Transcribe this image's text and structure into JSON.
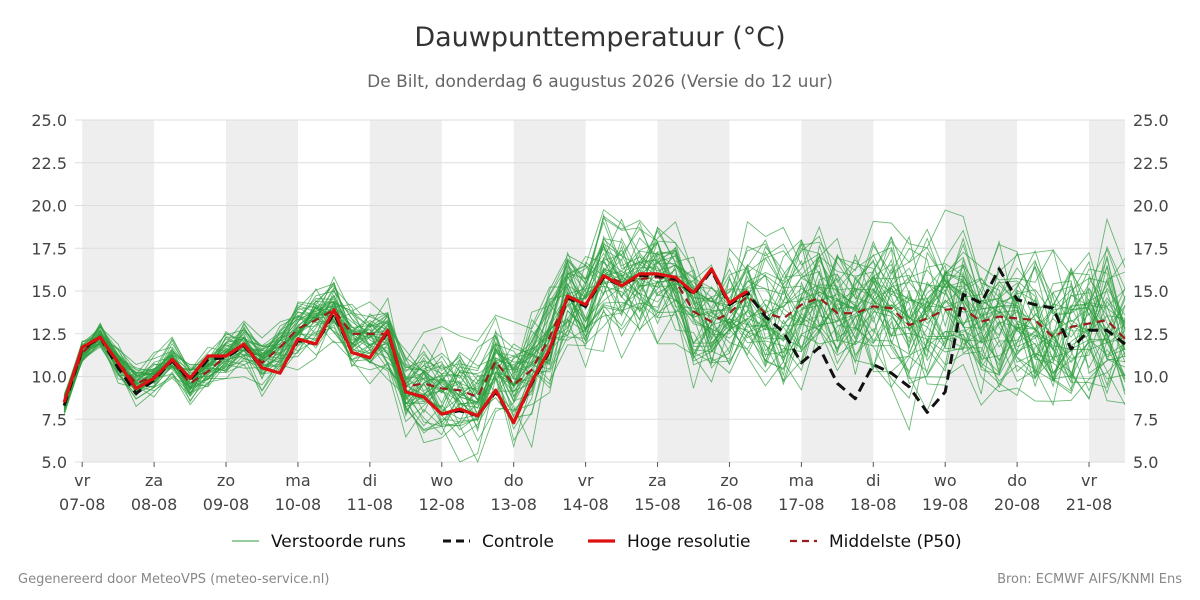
{
  "title": "Dauwpunttemperatuur (°C)",
  "subtitle": "De Bilt, donderdag  6 augustus 2026 (Versie do 12 uur)",
  "footer": {
    "generated": "Gegenereerd door MeteoVPS (meteo-service.nl)",
    "source": "Bron: ECMWF AIFS/KNMI Ens"
  },
  "colors": {
    "ensemble": "#2e9e3e",
    "control": "#111111",
    "high_res": "#dd1111",
    "median": "#9b1c1c",
    "night_band": "#eeeeee",
    "grid": "#dddddd"
  },
  "chart_data": {
    "type": "line",
    "ylim": [
      5,
      25
    ],
    "yticks": [
      "5.0",
      "7.5",
      "10.0",
      "12.5",
      "15.0",
      "17.5",
      "20.0",
      "22.5",
      "25.0"
    ],
    "y_axis_sides": [
      "left",
      "right"
    ],
    "xlim": [
      6.9,
      21.5
    ],
    "x_ticks": [
      {
        "x": 7,
        "day": "vr",
        "date": "07-08"
      },
      {
        "x": 8,
        "day": "za",
        "date": "08-08"
      },
      {
        "x": 9,
        "day": "zo",
        "date": "09-08"
      },
      {
        "x": 10,
        "day": "ma",
        "date": "10-08"
      },
      {
        "x": 11,
        "day": "di",
        "date": "11-08"
      },
      {
        "x": 12,
        "day": "wo",
        "date": "12-08"
      },
      {
        "x": 13,
        "day": "do",
        "date": "13-08"
      },
      {
        "x": 14,
        "day": "vr",
        "date": "14-08"
      },
      {
        "x": 15,
        "day": "za",
        "date": "15-08"
      },
      {
        "x": 16,
        "day": "zo",
        "date": "16-08"
      },
      {
        "x": 17,
        "day": "ma",
        "date": "17-08"
      },
      {
        "x": 18,
        "day": "di",
        "date": "18-08"
      },
      {
        "x": 19,
        "day": "wo",
        "date": "19-08"
      },
      {
        "x": 20,
        "day": "do",
        "date": "20-08"
      },
      {
        "x": 21,
        "day": "vr",
        "date": "21-08"
      }
    ],
    "shaded_days": [
      [
        7,
        8
      ],
      [
        9,
        10
      ],
      [
        11,
        12
      ],
      [
        13,
        14
      ],
      [
        15,
        16
      ],
      [
        17,
        18
      ],
      [
        19,
        20
      ],
      [
        21,
        22
      ]
    ],
    "grid": true,
    "legend_position": "bottom",
    "series": [
      {
        "name": "Hoge resolutie",
        "style": "solid",
        "color": "#dd1111",
        "x": [
          6.75,
          7.0,
          7.25,
          7.5,
          7.75,
          8.0,
          8.25,
          8.5,
          8.75,
          9.0,
          9.25,
          9.5,
          9.75,
          10.0,
          10.25,
          10.5,
          10.75,
          11.0,
          11.25,
          11.5,
          11.75,
          12.0,
          12.25,
          12.5,
          12.75,
          13.0,
          13.25,
          13.5,
          13.75,
          14.0,
          14.25,
          14.5,
          14.75,
          15.0,
          15.25,
          15.5,
          15.75,
          16.0,
          16.25
        ],
        "y": [
          8.5,
          11.7,
          12.3,
          10.8,
          9.3,
          9.9,
          11.0,
          9.9,
          11.2,
          11.2,
          11.9,
          10.5,
          10.2,
          12.2,
          11.9,
          13.9,
          11.4,
          11.1,
          12.7,
          9.1,
          8.8,
          7.8,
          8.1,
          7.7,
          9.2,
          7.3,
          9.7,
          11.6,
          14.7,
          14.2,
          15.9,
          15.3,
          16.0,
          16.0,
          15.8,
          14.9,
          16.3,
          14.3,
          15.0
        ]
      },
      {
        "name": "Controle",
        "style": "dashed",
        "color": "#111111",
        "x": [
          6.75,
          7.0,
          7.25,
          7.5,
          7.75,
          8.0,
          8.25,
          8.5,
          8.75,
          9.0,
          9.25,
          9.5,
          9.75,
          10.0,
          10.25,
          10.5,
          10.75,
          11.0,
          11.25,
          11.5,
          11.75,
          12.0,
          12.25,
          12.5,
          12.75,
          13.0,
          13.25,
          13.5,
          13.75,
          14.0,
          14.25,
          14.5,
          14.75,
          15.0,
          15.25,
          15.5,
          15.75,
          16.0,
          16.25,
          16.5,
          16.75,
          17.0,
          17.25,
          17.5,
          17.75,
          18.0,
          18.25,
          18.5,
          18.75,
          19.0,
          19.25,
          19.5,
          19.75,
          20.0,
          20.25,
          20.5,
          20.75,
          21.0,
          21.25,
          21.5
        ],
        "y": [
          8.3,
          11.6,
          12.3,
          10.5,
          9.0,
          9.8,
          10.9,
          9.8,
          11.0,
          11.1,
          11.8,
          10.5,
          10.2,
          12.1,
          11.9,
          13.7,
          11.4,
          11.1,
          12.6,
          9.1,
          8.8,
          7.8,
          8.0,
          7.7,
          9.1,
          7.3,
          9.6,
          11.5,
          14.6,
          14.1,
          15.8,
          15.3,
          15.9,
          15.9,
          15.7,
          14.8,
          16.2,
          14.2,
          14.9,
          13.5,
          12.6,
          10.8,
          11.7,
          9.6,
          8.7,
          10.7,
          10.2,
          9.4,
          7.9,
          9.1,
          14.8,
          14.3,
          16.3,
          14.5,
          14.2,
          14.0,
          11.6,
          12.7,
          12.7,
          11.9
        ]
      },
      {
        "name": "Middelste (P50)",
        "style": "dashed",
        "color": "#9b1c1c",
        "x": [
          6.75,
          7.0,
          7.25,
          7.5,
          7.75,
          8.0,
          8.25,
          8.5,
          8.75,
          9.0,
          9.25,
          9.5,
          9.75,
          10.0,
          10.25,
          10.5,
          10.75,
          11.0,
          11.25,
          11.5,
          11.75,
          12.0,
          12.25,
          12.5,
          12.75,
          13.0,
          13.25,
          13.5,
          13.75,
          14.0,
          14.25,
          14.5,
          14.75,
          15.0,
          15.25,
          15.5,
          15.75,
          16.0,
          16.25,
          16.5,
          16.75,
          17.0,
          17.25,
          17.5,
          17.75,
          18.0,
          18.25,
          18.5,
          18.75,
          19.0,
          19.25,
          19.5,
          19.75,
          20.0,
          20.25,
          20.5,
          20.75,
          21.0,
          21.25,
          21.5
        ],
        "y": [
          8.4,
          11.4,
          12.3,
          10.8,
          9.6,
          10.0,
          10.9,
          9.6,
          10.3,
          11.2,
          11.8,
          10.8,
          11.7,
          12.8,
          13.3,
          13.9,
          12.5,
          12.5,
          12.5,
          9.4,
          9.6,
          9.3,
          9.2,
          8.8,
          10.9,
          9.5,
          10.4,
          12.3,
          14.7,
          14.2,
          15.9,
          15.5,
          15.7,
          15.8,
          15.6,
          13.8,
          13.2,
          13.7,
          14.7,
          13.7,
          13.4,
          14.2,
          14.6,
          13.7,
          13.7,
          14.1,
          14.0,
          13.0,
          13.4,
          13.9,
          14.0,
          13.2,
          13.5,
          13.4,
          13.3,
          12.3,
          12.9,
          13.1,
          13.3,
          12.2
        ]
      },
      {
        "name": "Verstoorde runs",
        "style": "thin",
        "color": "#2e9e3e",
        "count": 50,
        "spread": [
          [
            7,
            0.6
          ],
          [
            9,
            1.0
          ],
          [
            11,
            1.6
          ],
          [
            13,
            2.2
          ],
          [
            15,
            2.6
          ],
          [
            17,
            2.8
          ],
          [
            19,
            3.0
          ],
          [
            21,
            3.2
          ]
        ]
      }
    ]
  }
}
